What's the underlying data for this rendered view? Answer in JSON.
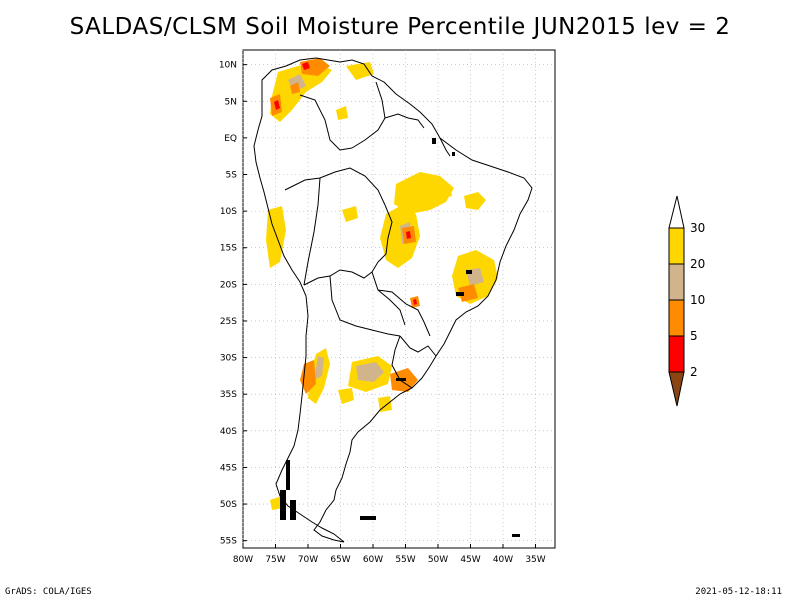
{
  "map": {
    "title": "SALDAS/CLSM Soil Moisture Percentile JUN2015 lev = 2",
    "lat_labels": [
      "10N",
      "5N",
      "EQ",
      "5S",
      "10S",
      "15S",
      "20S",
      "25S",
      "30S",
      "35S",
      "40S",
      "45S",
      "50S",
      "55S"
    ],
    "lon_labels": [
      "80W",
      "75W",
      "70W",
      "65W",
      "60W",
      "55W",
      "50W",
      "45W",
      "40W",
      "35W"
    ],
    "extent": {
      "lon_min": -80,
      "lon_max": -32,
      "lat_min": -56,
      "lat_max": 12
    }
  },
  "legend": {
    "labels": [
      "2",
      "5",
      "10",
      "20",
      "30"
    ],
    "colors": {
      "below_2": "#8b4513",
      "2_5": "#ff0000",
      "5_10": "#ff8c00",
      "10_20": "#d2b48c",
      "20_30": "#ffd700",
      "above_30": "#ffffff"
    }
  },
  "footer": {
    "left": "GrADS: COLA/IGES",
    "right": "2021-05-12-18:11"
  }
}
